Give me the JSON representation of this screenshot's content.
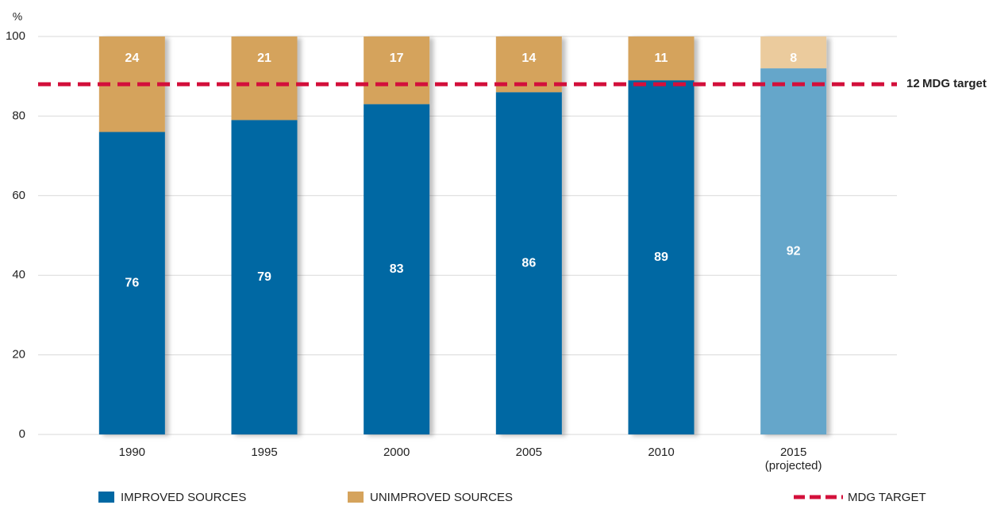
{
  "chart_data": {
    "type": "stacked_bar",
    "y_unit": "%",
    "categories": [
      "1990",
      "1995",
      "2000",
      "2005",
      "2010",
      "2015 (projected)"
    ],
    "series": [
      {
        "name": "IMPROVED SOURCES",
        "color": "#0068a3",
        "colors": [
          "#0068a3",
          "#0068a3",
          "#0068a3",
          "#0068a3",
          "#0068a3",
          "#65a6ca"
        ],
        "values": [
          76,
          79,
          83,
          86,
          89,
          92
        ]
      },
      {
        "name": "UNIMPROVED SOURCES",
        "color": "#d5a35c",
        "colors": [
          "#d5a35c",
          "#d5a35c",
          "#d5a35c",
          "#d5a35c",
          "#d5a35c",
          "#ebcb9d"
        ],
        "values": [
          24,
          21,
          17,
          14,
          11,
          8
        ]
      }
    ],
    "target": {
      "name": "MDG TARGET",
      "value": 88,
      "gap": 12,
      "label": "MDG target",
      "color": "#d3103b"
    },
    "ylim": [
      0,
      100
    ],
    "yticks": [
      0,
      20,
      40,
      60,
      80,
      100
    ],
    "grid": true
  }
}
